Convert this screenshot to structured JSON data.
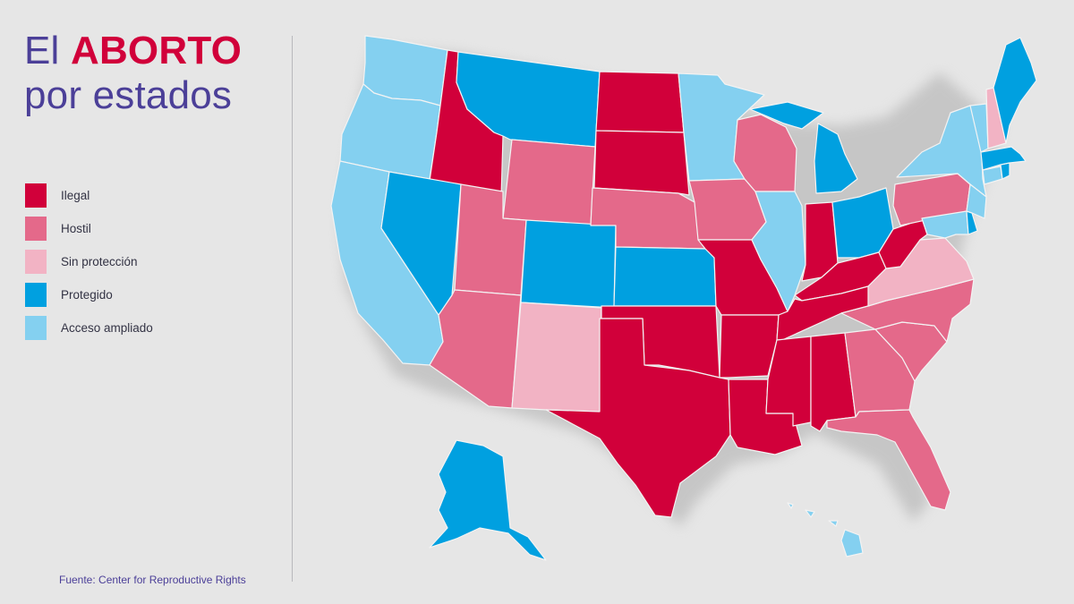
{
  "title": {
    "prefix": "El",
    "highlight": "ABORTO",
    "line2": "por estados"
  },
  "legend": [
    {
      "label": "Ilegal",
      "color": "#d1003a"
    },
    {
      "label": "Hostil",
      "color": "#e4698a"
    },
    {
      "label": "Sin protección",
      "color": "#f2b3c4"
    },
    {
      "label": "Protegido",
      "color": "#00a0e0"
    },
    {
      "label": "Acceso ampliado",
      "color": "#84d0f0"
    }
  ],
  "source": "Fuente: Center for Reproductive Rights",
  "colors": {
    "ilegal": "#d1003a",
    "hostil": "#e4698a",
    "sin_proteccion": "#f2b3c4",
    "protegido": "#00a0e0",
    "acceso_ampliado": "#84d0f0",
    "title": "#4b3f98",
    "background": "#e6e6e6"
  },
  "states": {
    "washington": "acceso_ampliado",
    "oregon": "acceso_ampliado",
    "california": "acceso_ampliado",
    "idaho": "ilegal",
    "nevada": "protegido",
    "montana": "protegido",
    "wyoming": "hostil",
    "utah": "hostil",
    "arizona": "hostil",
    "colorado": "protegido",
    "new_mexico": "sin_proteccion",
    "north_dakota": "ilegal",
    "south_dakota": "ilegal",
    "nebraska": "hostil",
    "kansas": "protegido",
    "oklahoma": "ilegal",
    "texas": "ilegal",
    "minnesota": "acceso_ampliado",
    "iowa": "hostil",
    "missouri": "ilegal",
    "arkansas": "ilegal",
    "louisiana": "ilegal",
    "wisconsin": "hostil",
    "illinois": "acceso_ampliado",
    "michigan": "protegido",
    "indiana": "ilegal",
    "ohio": "protegido",
    "kentucky": "ilegal",
    "tennessee": "ilegal",
    "mississippi": "ilegal",
    "alabama": "ilegal",
    "georgia": "hostil",
    "florida": "hostil",
    "south_carolina": "hostil",
    "north_carolina": "hostil",
    "virginia": "sin_proteccion",
    "west_virginia": "ilegal",
    "pennsylvania": "hostil",
    "new_york": "acceso_ampliado",
    "maine": "protegido",
    "new_hampshire": "sin_proteccion",
    "vermont": "acceso_ampliado",
    "massachusetts": "protegido",
    "rhode_island": "protegido",
    "connecticut": "acceso_ampliado",
    "new_jersey": "acceso_ampliado",
    "delaware": "protegido",
    "maryland": "acceso_ampliado",
    "alaska": "protegido",
    "hawaii": "acceso_ampliado"
  }
}
